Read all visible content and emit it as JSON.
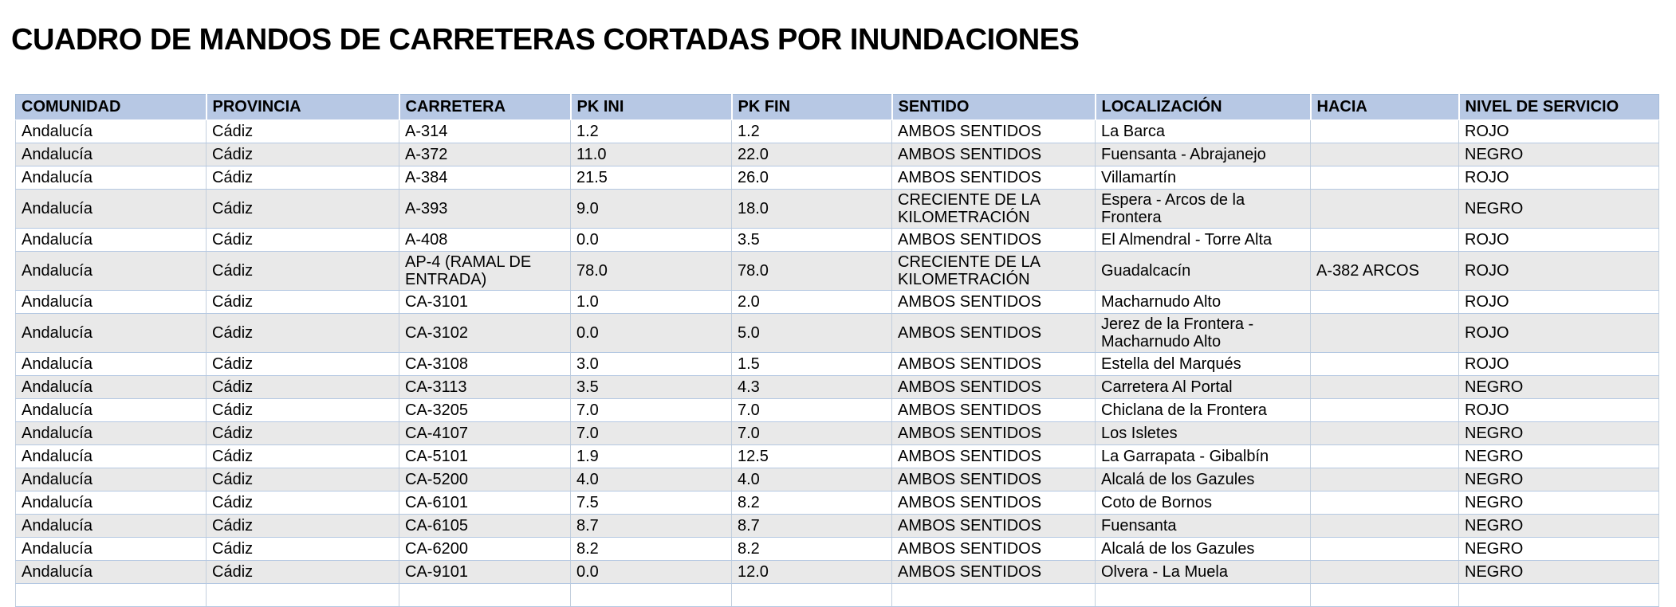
{
  "title": "CUADRO DE MANDOS DE CARRETERAS CORTADAS POR INUNDACIONES",
  "colors": {
    "header_bg": "#b7c8e4",
    "row_bg": "#ffffff",
    "row_alt_bg": "#e9e9e9",
    "grid_border": "#b4c8e2",
    "text": "#000000"
  },
  "table": {
    "columns": [
      "COMUNIDAD",
      "PROVINCIA",
      "CARRETERA",
      "PK INI",
      "PK FIN",
      "SENTIDO",
      "LOCALIZACIÓN",
      "HACIA",
      "NIVEL DE SERVICIO"
    ],
    "rows": [
      {
        "comunidad": "Andalucía",
        "provincia": "Cádiz",
        "carretera": "A-314",
        "pk_ini": "1.2",
        "pk_fin": "1.2",
        "sentido": "AMBOS SENTIDOS",
        "localizacion": "La Barca",
        "hacia": "",
        "nivel_de_servicio": "ROJO"
      },
      {
        "comunidad": "Andalucía",
        "provincia": "Cádiz",
        "carretera": "A-372",
        "pk_ini": "11.0",
        "pk_fin": "22.0",
        "sentido": "AMBOS SENTIDOS",
        "localizacion": "Fuensanta - Abrajanejo",
        "hacia": "",
        "nivel_de_servicio": "NEGRO"
      },
      {
        "comunidad": "Andalucía",
        "provincia": "Cádiz",
        "carretera": "A-384",
        "pk_ini": "21.5",
        "pk_fin": "26.0",
        "sentido": "AMBOS SENTIDOS",
        "localizacion": "Villamartín",
        "hacia": "",
        "nivel_de_servicio": "ROJO"
      },
      {
        "comunidad": "Andalucía",
        "provincia": "Cádiz",
        "carretera": "A-393",
        "pk_ini": "9.0",
        "pk_fin": "18.0",
        "sentido": "CRECIENTE DE LA KILOMETRACIÓN",
        "localizacion": "Espera - Arcos de la Frontera",
        "hacia": "",
        "nivel_de_servicio": "NEGRO"
      },
      {
        "comunidad": "Andalucía",
        "provincia": "Cádiz",
        "carretera": "A-408",
        "pk_ini": "0.0",
        "pk_fin": "3.5",
        "sentido": "AMBOS SENTIDOS",
        "localizacion": "El Almendral - Torre Alta",
        "hacia": "",
        "nivel_de_servicio": "ROJO"
      },
      {
        "comunidad": "Andalucía",
        "provincia": "Cádiz",
        "carretera": "AP-4 (RAMAL DE ENTRADA)",
        "pk_ini": "78.0",
        "pk_fin": "78.0",
        "sentido": "CRECIENTE DE LA KILOMETRACIÓN",
        "localizacion": "Guadalcacín",
        "hacia": "A-382 ARCOS",
        "nivel_de_servicio": "ROJO"
      },
      {
        "comunidad": "Andalucía",
        "provincia": "Cádiz",
        "carretera": "CA-3101",
        "pk_ini": "1.0",
        "pk_fin": "2.0",
        "sentido": "AMBOS SENTIDOS",
        "localizacion": "Macharnudo Alto",
        "hacia": "",
        "nivel_de_servicio": "ROJO"
      },
      {
        "comunidad": "Andalucía",
        "provincia": "Cádiz",
        "carretera": "CA-3102",
        "pk_ini": "0.0",
        "pk_fin": "5.0",
        "sentido": "AMBOS SENTIDOS",
        "localizacion": "Jerez de la Frontera - Macharnudo Alto",
        "hacia": "",
        "nivel_de_servicio": "ROJO"
      },
      {
        "comunidad": "Andalucía",
        "provincia": "Cádiz",
        "carretera": "CA-3108",
        "pk_ini": "3.0",
        "pk_fin": "1.5",
        "sentido": "AMBOS SENTIDOS",
        "localizacion": "Estella del Marqués",
        "hacia": "",
        "nivel_de_servicio": "ROJO"
      },
      {
        "comunidad": "Andalucía",
        "provincia": "Cádiz",
        "carretera": "CA-3113",
        "pk_ini": "3.5",
        "pk_fin": "4.3",
        "sentido": "AMBOS SENTIDOS",
        "localizacion": "Carretera Al Portal",
        "hacia": "",
        "nivel_de_servicio": "NEGRO"
      },
      {
        "comunidad": "Andalucía",
        "provincia": "Cádiz",
        "carretera": "CA-3205",
        "pk_ini": "7.0",
        "pk_fin": "7.0",
        "sentido": "AMBOS SENTIDOS",
        "localizacion": "Chiclana de la Frontera",
        "hacia": "",
        "nivel_de_servicio": "ROJO"
      },
      {
        "comunidad": "Andalucía",
        "provincia": "Cádiz",
        "carretera": "CA-4107",
        "pk_ini": "7.0",
        "pk_fin": "7.0",
        "sentido": "AMBOS SENTIDOS",
        "localizacion": "Los Isletes",
        "hacia": "",
        "nivel_de_servicio": "NEGRO"
      },
      {
        "comunidad": "Andalucía",
        "provincia": "Cádiz",
        "carretera": "CA-5101",
        "pk_ini": "1.9",
        "pk_fin": "12.5",
        "sentido": "AMBOS SENTIDOS",
        "localizacion": "La Garrapata - Gibalbín",
        "hacia": "",
        "nivel_de_servicio": "NEGRO"
      },
      {
        "comunidad": "Andalucía",
        "provincia": "Cádiz",
        "carretera": "CA-5200",
        "pk_ini": "4.0",
        "pk_fin": "4.0",
        "sentido": "AMBOS SENTIDOS",
        "localizacion": "Alcalá de los Gazules",
        "hacia": "",
        "nivel_de_servicio": "NEGRO"
      },
      {
        "comunidad": "Andalucía",
        "provincia": "Cádiz",
        "carretera": "CA-6101",
        "pk_ini": "7.5",
        "pk_fin": "8.2",
        "sentido": "AMBOS SENTIDOS",
        "localizacion": "Coto de Bornos",
        "hacia": "",
        "nivel_de_servicio": "NEGRO"
      },
      {
        "comunidad": "Andalucía",
        "provincia": "Cádiz",
        "carretera": "CA-6105",
        "pk_ini": "8.7",
        "pk_fin": "8.7",
        "sentido": "AMBOS SENTIDOS",
        "localizacion": "Fuensanta",
        "hacia": "",
        "nivel_de_servicio": "NEGRO"
      },
      {
        "comunidad": "Andalucía",
        "provincia": "Cádiz",
        "carretera": "CA-6200",
        "pk_ini": "8.2",
        "pk_fin": "8.2",
        "sentido": "AMBOS SENTIDOS",
        "localizacion": "Alcalá de los Gazules",
        "hacia": "",
        "nivel_de_servicio": "NEGRO"
      },
      {
        "comunidad": "Andalucía",
        "provincia": "Cádiz",
        "carretera": "CA-9101",
        "pk_ini": "0.0",
        "pk_fin": "12.0",
        "sentido": "AMBOS SENTIDOS",
        "localizacion": "Olvera - La Muela",
        "hacia": "",
        "nivel_de_servicio": "NEGRO"
      }
    ]
  }
}
